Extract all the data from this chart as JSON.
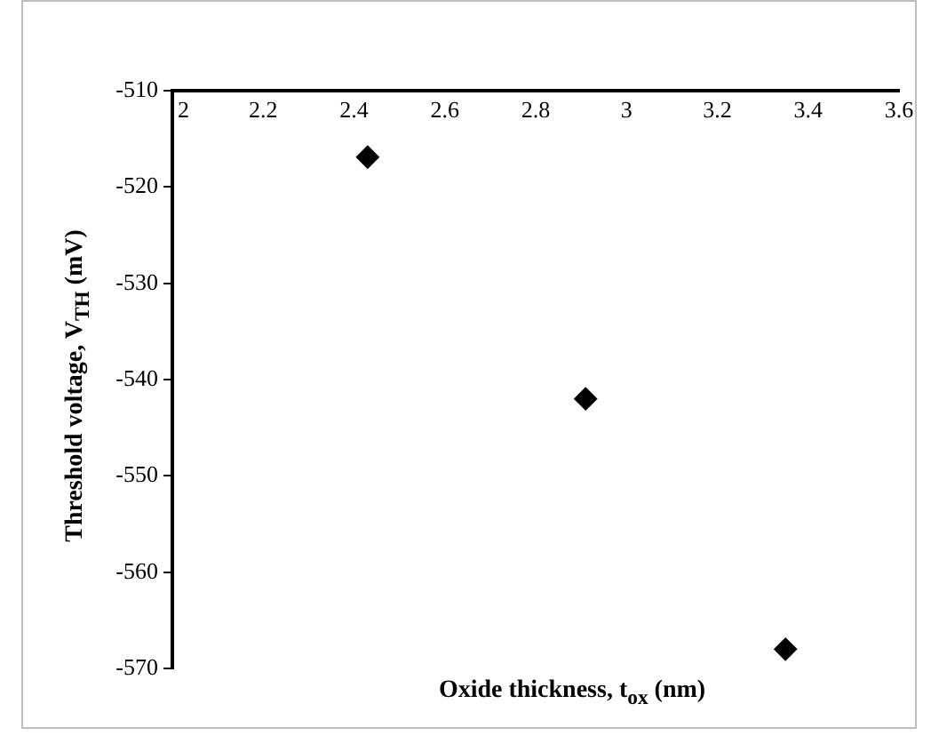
{
  "chart_data": {
    "type": "scatter",
    "xlabel": "Oxide thickness,  t$_{ox}$ (nm)",
    "ylabel": "Threshold voltage, V$_{TH}$ (mV)",
    "x": [
      2.43,
      2.91,
      3.35
    ],
    "series": [
      {
        "color": "#000000",
        "values": [
          -516.9,
          -542,
          -568
        ]
      }
    ],
    "xlim": [
      2,
      3.6
    ],
    "xticks": [
      2,
      2.2,
      2.4,
      2.6,
      2.8,
      3,
      3.2,
      3.4,
      3.6
    ],
    "ylim": [
      -570,
      -510
    ],
    "yticks": [
      -570,
      -560,
      -550,
      -540,
      -530,
      -520,
      -510
    ],
    "grid": false,
    "legend": false,
    "marker": "diamond"
  }
}
